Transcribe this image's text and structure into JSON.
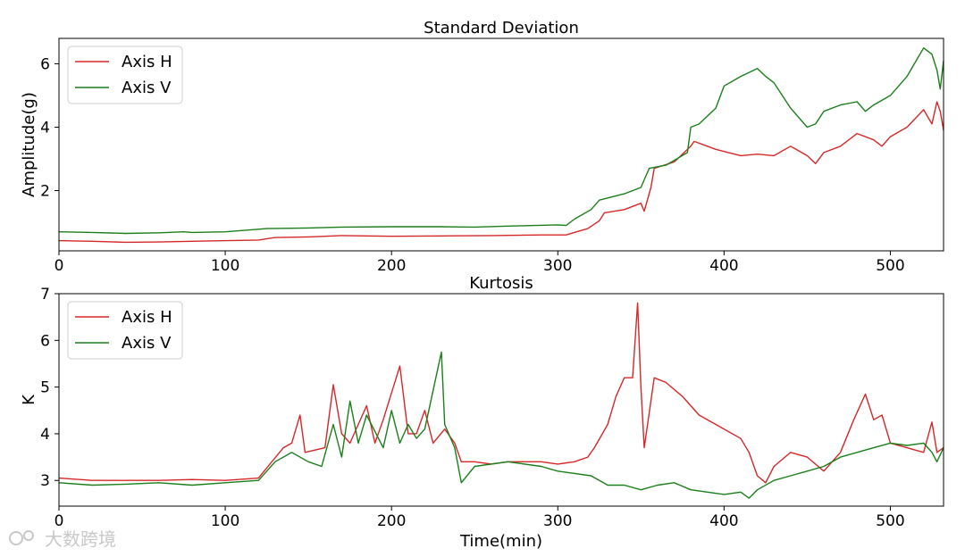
{
  "watermark": "大数跨境",
  "colors": {
    "axis_h": "#d62728",
    "axis_v": "#1a7f1a"
  },
  "chart_data": [
    {
      "id": "std",
      "type": "line",
      "title": "Standard Deviation",
      "xlabel": "",
      "ylabel": "Amplitude(g)",
      "xlim": [
        0,
        532
      ],
      "ylim": [
        0.1,
        6.8
      ],
      "xticks": [
        0,
        100,
        200,
        300,
        400,
        500
      ],
      "yticks": [
        2,
        4,
        6
      ],
      "grid": false,
      "legend_position": "upper-left",
      "series": [
        {
          "name": "Axis H",
          "color": "#d62728",
          "points": [
            [
              0,
              0.42
            ],
            [
              20,
              0.4
            ],
            [
              40,
              0.37
            ],
            [
              60,
              0.38
            ],
            [
              80,
              0.4
            ],
            [
              100,
              0.42
            ],
            [
              120,
              0.44
            ],
            [
              130,
              0.52
            ],
            [
              150,
              0.54
            ],
            [
              170,
              0.58
            ],
            [
              200,
              0.56
            ],
            [
              230,
              0.57
            ],
            [
              260,
              0.58
            ],
            [
              290,
              0.6
            ],
            [
              305,
              0.6
            ],
            [
              310,
              0.68
            ],
            [
              318,
              0.8
            ],
            [
              325,
              1.05
            ],
            [
              328,
              1.3
            ],
            [
              340,
              1.4
            ],
            [
              350,
              1.6
            ],
            [
              352,
              1.35
            ],
            [
              356,
              2.1
            ],
            [
              358,
              2.7
            ],
            [
              370,
              2.9
            ],
            [
              380,
              3.4
            ],
            [
              382,
              3.55
            ],
            [
              395,
              3.3
            ],
            [
              410,
              3.1
            ],
            [
              420,
              3.15
            ],
            [
              430,
              3.1
            ],
            [
              440,
              3.4
            ],
            [
              450,
              3.1
            ],
            [
              455,
              2.85
            ],
            [
              460,
              3.2
            ],
            [
              470,
              3.4
            ],
            [
              480,
              3.8
            ],
            [
              490,
              3.6
            ],
            [
              495,
              3.4
            ],
            [
              500,
              3.7
            ],
            [
              510,
              4.0
            ],
            [
              520,
              4.55
            ],
            [
              525,
              4.1
            ],
            [
              528,
              4.8
            ],
            [
              530,
              4.5
            ],
            [
              532,
              3.9
            ]
          ]
        },
        {
          "name": "Axis V",
          "color": "#1a7f1a",
          "points": [
            [
              0,
              0.7
            ],
            [
              20,
              0.68
            ],
            [
              40,
              0.65
            ],
            [
              60,
              0.67
            ],
            [
              75,
              0.7
            ],
            [
              80,
              0.68
            ],
            [
              100,
              0.7
            ],
            [
              125,
              0.8
            ],
            [
              150,
              0.82
            ],
            [
              170,
              0.85
            ],
            [
              200,
              0.86
            ],
            [
              230,
              0.86
            ],
            [
              250,
              0.85
            ],
            [
              270,
              0.88
            ],
            [
              300,
              0.92
            ],
            [
              305,
              0.9
            ],
            [
              310,
              1.1
            ],
            [
              320,
              1.4
            ],
            [
              325,
              1.7
            ],
            [
              340,
              1.9
            ],
            [
              350,
              2.1
            ],
            [
              355,
              2.7
            ],
            [
              365,
              2.8
            ],
            [
              378,
              3.2
            ],
            [
              380,
              4.0
            ],
            [
              385,
              4.1
            ],
            [
              395,
              4.6
            ],
            [
              400,
              5.3
            ],
            [
              410,
              5.6
            ],
            [
              420,
              5.85
            ],
            [
              425,
              5.6
            ],
            [
              430,
              5.4
            ],
            [
              440,
              4.6
            ],
            [
              450,
              4.0
            ],
            [
              455,
              4.1
            ],
            [
              460,
              4.5
            ],
            [
              470,
              4.7
            ],
            [
              480,
              4.8
            ],
            [
              485,
              4.5
            ],
            [
              490,
              4.7
            ],
            [
              500,
              5.0
            ],
            [
              505,
              5.3
            ],
            [
              510,
              5.6
            ],
            [
              520,
              6.5
            ],
            [
              525,
              6.3
            ],
            [
              528,
              5.8
            ],
            [
              530,
              5.2
            ],
            [
              532,
              6.1
            ]
          ]
        }
      ]
    },
    {
      "id": "kurt",
      "type": "line",
      "title": "Kurtosis",
      "xlabel": "Time(min)",
      "ylabel": "K",
      "xlim": [
        0,
        532
      ],
      "ylim": [
        2.45,
        7.0
      ],
      "xticks": [
        0,
        100,
        200,
        300,
        400,
        500
      ],
      "yticks": [
        3,
        4,
        5,
        6,
        7
      ],
      "grid": false,
      "legend_position": "upper-left",
      "series": [
        {
          "name": "Axis H",
          "color": "#d62728",
          "points": [
            [
              0,
              3.05
            ],
            [
              20,
              3.0
            ],
            [
              40,
              3.0
            ],
            [
              60,
              3.0
            ],
            [
              80,
              3.02
            ],
            [
              100,
              3.0
            ],
            [
              120,
              3.05
            ],
            [
              128,
              3.4
            ],
            [
              135,
              3.7
            ],
            [
              140,
              3.8
            ],
            [
              145,
              4.4
            ],
            [
              148,
              3.6
            ],
            [
              160,
              3.7
            ],
            [
              165,
              5.05
            ],
            [
              170,
              4.0
            ],
            [
              175,
              3.8
            ],
            [
              185,
              4.6
            ],
            [
              190,
              3.8
            ],
            [
              195,
              4.3
            ],
            [
              205,
              5.45
            ],
            [
              210,
              4.0
            ],
            [
              215,
              4.0
            ],
            [
              220,
              4.5
            ],
            [
              225,
              3.8
            ],
            [
              232,
              4.1
            ],
            [
              238,
              3.8
            ],
            [
              242,
              3.4
            ],
            [
              250,
              3.4
            ],
            [
              260,
              3.35
            ],
            [
              270,
              3.4
            ],
            [
              290,
              3.4
            ],
            [
              300,
              3.35
            ],
            [
              310,
              3.4
            ],
            [
              318,
              3.5
            ],
            [
              322,
              3.7
            ],
            [
              330,
              4.2
            ],
            [
              335,
              4.8
            ],
            [
              340,
              5.2
            ],
            [
              345,
              5.2
            ],
            [
              348,
              6.8
            ],
            [
              350,
              5.0
            ],
            [
              352,
              3.7
            ],
            [
              358,
              5.2
            ],
            [
              365,
              5.1
            ],
            [
              375,
              4.8
            ],
            [
              385,
              4.4
            ],
            [
              395,
              4.2
            ],
            [
              410,
              3.9
            ],
            [
              415,
              3.6
            ],
            [
              420,
              3.1
            ],
            [
              425,
              2.95
            ],
            [
              430,
              3.3
            ],
            [
              440,
              3.6
            ],
            [
              450,
              3.5
            ],
            [
              460,
              3.2
            ],
            [
              465,
              3.4
            ],
            [
              470,
              3.6
            ],
            [
              478,
              4.3
            ],
            [
              485,
              4.85
            ],
            [
              490,
              4.3
            ],
            [
              495,
              4.4
            ],
            [
              500,
              3.8
            ],
            [
              510,
              3.7
            ],
            [
              520,
              3.6
            ],
            [
              525,
              4.25
            ],
            [
              528,
              3.6
            ],
            [
              532,
              3.7
            ]
          ]
        },
        {
          "name": "Axis V",
          "color": "#1a7f1a",
          "points": [
            [
              0,
              2.95
            ],
            [
              20,
              2.9
            ],
            [
              40,
              2.92
            ],
            [
              60,
              2.95
            ],
            [
              80,
              2.9
            ],
            [
              100,
              2.95
            ],
            [
              120,
              3.0
            ],
            [
              130,
              3.4
            ],
            [
              140,
              3.6
            ],
            [
              150,
              3.4
            ],
            [
              158,
              3.3
            ],
            [
              165,
              4.2
            ],
            [
              170,
              3.5
            ],
            [
              175,
              4.7
            ],
            [
              180,
              3.8
            ],
            [
              185,
              4.4
            ],
            [
              195,
              3.7
            ],
            [
              200,
              4.5
            ],
            [
              205,
              3.8
            ],
            [
              210,
              4.2
            ],
            [
              215,
              3.9
            ],
            [
              220,
              4.1
            ],
            [
              230,
              5.75
            ],
            [
              232,
              4.2
            ],
            [
              238,
              3.7
            ],
            [
              242,
              2.95
            ],
            [
              250,
              3.3
            ],
            [
              270,
              3.4
            ],
            [
              290,
              3.3
            ],
            [
              300,
              3.2
            ],
            [
              320,
              3.1
            ],
            [
              330,
              2.9
            ],
            [
              340,
              2.9
            ],
            [
              350,
              2.8
            ],
            [
              360,
              2.9
            ],
            [
              370,
              2.95
            ],
            [
              380,
              2.8
            ],
            [
              390,
              2.75
            ],
            [
              400,
              2.7
            ],
            [
              410,
              2.75
            ],
            [
              415,
              2.62
            ],
            [
              420,
              2.8
            ],
            [
              430,
              3.0
            ],
            [
              440,
              3.1
            ],
            [
              450,
              3.2
            ],
            [
              460,
              3.3
            ],
            [
              470,
              3.5
            ],
            [
              480,
              3.6
            ],
            [
              490,
              3.7
            ],
            [
              500,
              3.8
            ],
            [
              510,
              3.75
            ],
            [
              520,
              3.8
            ],
            [
              525,
              3.6
            ],
            [
              528,
              3.4
            ],
            [
              532,
              3.7
            ]
          ]
        }
      ]
    }
  ]
}
